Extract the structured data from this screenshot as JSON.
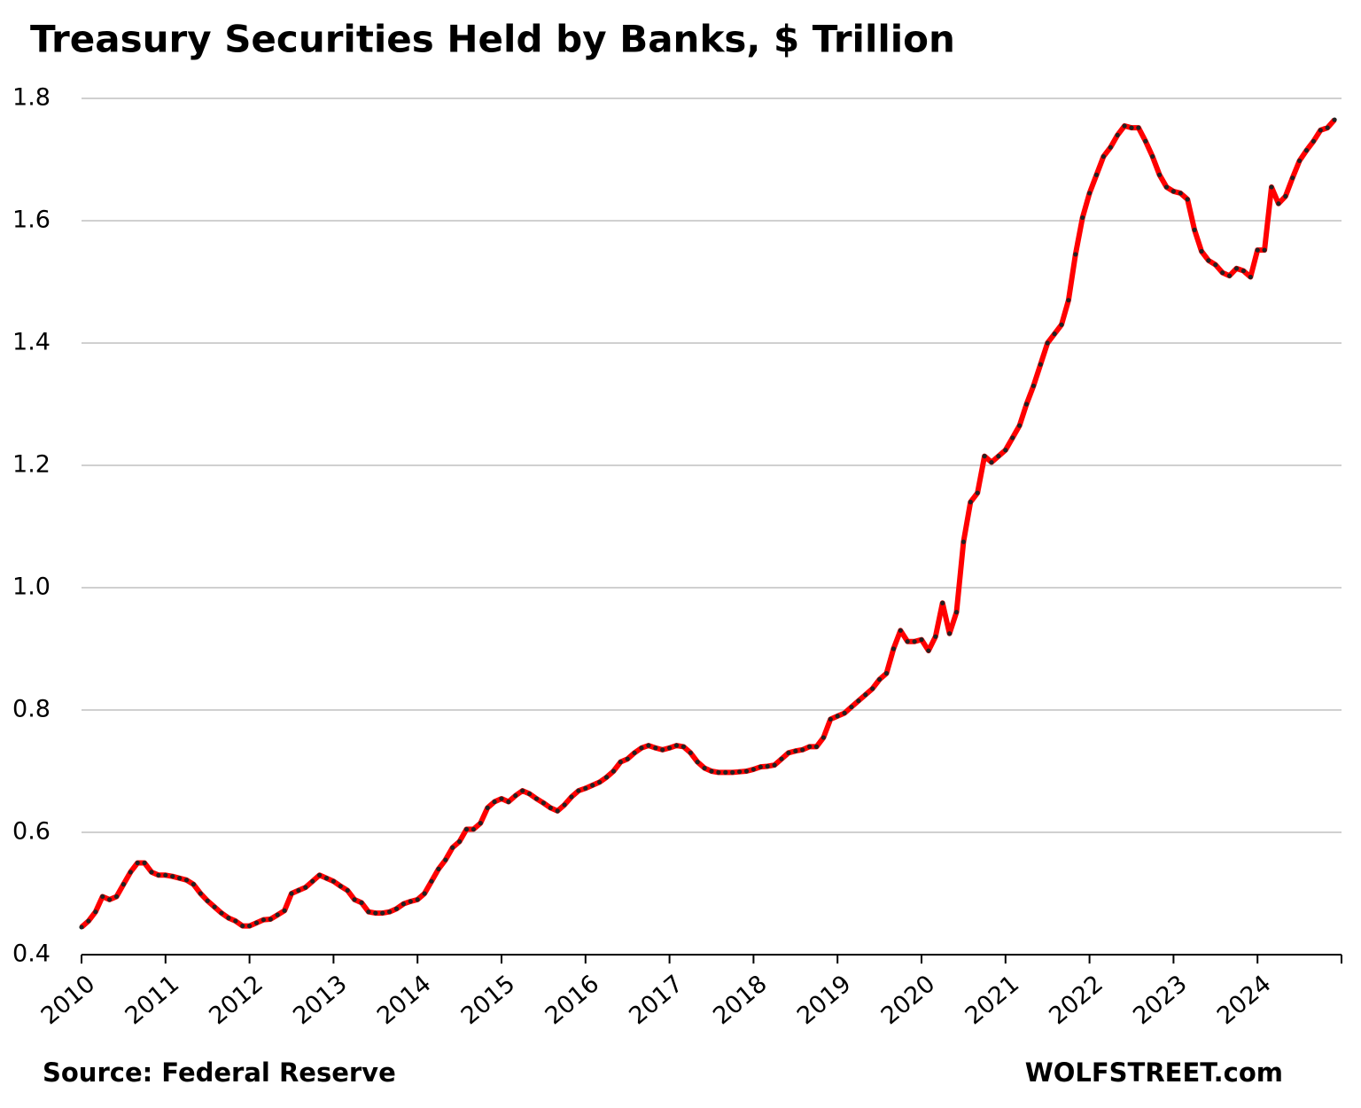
{
  "chart_data": {
    "type": "line",
    "title": "Treasury Securities Held by Banks, $ Trillion",
    "source": "Source: Federal Reserve",
    "watermark": "WOLFSTREET.com",
    "categories": [
      "2010",
      null,
      null,
      null,
      null,
      null,
      null,
      null,
      null,
      null,
      null,
      null,
      "2011",
      null,
      null,
      null,
      null,
      null,
      null,
      null,
      null,
      null,
      null,
      null,
      "2012",
      null,
      null,
      null,
      null,
      null,
      null,
      null,
      null,
      null,
      null,
      null,
      "2013",
      null,
      null,
      null,
      null,
      null,
      null,
      null,
      null,
      null,
      null,
      null,
      "2014",
      null,
      null,
      null,
      null,
      null,
      null,
      null,
      null,
      null,
      null,
      null,
      "2015",
      null,
      null,
      null,
      null,
      null,
      null,
      null,
      null,
      null,
      null,
      null,
      "2016",
      null,
      null,
      null,
      null,
      null,
      null,
      null,
      null,
      null,
      null,
      null,
      "2017",
      null,
      null,
      null,
      null,
      null,
      null,
      null,
      null,
      null,
      null,
      null,
      "2018",
      null,
      null,
      null,
      null,
      null,
      null,
      null,
      null,
      null,
      null,
      null,
      "2019",
      null,
      null,
      null,
      null,
      null,
      null,
      null,
      null,
      null,
      null,
      null,
      "2020",
      null,
      null,
      null,
      null,
      null,
      null,
      null,
      null,
      null,
      null,
      null,
      "2021",
      null,
      null,
      null,
      null,
      null,
      null,
      null,
      null,
      null,
      null,
      null,
      "2022",
      null,
      null,
      null,
      null,
      null,
      null,
      null,
      null,
      null,
      null,
      null,
      "2023",
      null,
      null,
      null,
      null,
      null,
      null,
      null,
      null,
      null,
      null,
      null,
      "2024",
      null,
      null,
      null,
      null,
      null,
      null,
      null,
      null,
      null,
      null,
      null
    ],
    "series": [
      {
        "color": "#ff0000",
        "marker_color": "#222222",
        "values": [
          0.445,
          0.455,
          0.47,
          0.495,
          0.49,
          0.495,
          0.515,
          0.535,
          0.55,
          0.55,
          0.535,
          0.53,
          0.53,
          0.528,
          0.525,
          0.522,
          0.515,
          0.5,
          0.488,
          0.478,
          0.468,
          0.46,
          0.455,
          0.447,
          0.447,
          0.452,
          0.457,
          0.458,
          0.465,
          0.472,
          0.5,
          0.505,
          0.51,
          0.52,
          0.53,
          0.525,
          0.52,
          0.512,
          0.505,
          0.49,
          0.485,
          0.47,
          0.468,
          0.468,
          0.47,
          0.475,
          0.483,
          0.487,
          0.49,
          0.5,
          0.52,
          0.54,
          0.555,
          0.575,
          0.585,
          0.605,
          0.605,
          0.615,
          0.64,
          0.65,
          0.655,
          0.65,
          0.66,
          0.668,
          0.663,
          0.655,
          0.648,
          0.64,
          0.635,
          0.645,
          0.658,
          0.668,
          0.672,
          0.677,
          0.682,
          0.69,
          0.7,
          0.715,
          0.72,
          0.73,
          0.738,
          0.742,
          0.738,
          0.735,
          0.738,
          0.742,
          0.74,
          0.73,
          0.715,
          0.705,
          0.7,
          0.698,
          0.698,
          0.698,
          0.699,
          0.7,
          0.703,
          0.707,
          0.708,
          0.71,
          0.72,
          0.73,
          0.733,
          0.735,
          0.74,
          0.74,
          0.755,
          0.785,
          0.79,
          0.795,
          0.805,
          0.815,
          0.825,
          0.835,
          0.85,
          0.86,
          0.9,
          0.93,
          0.912,
          0.912,
          0.915,
          0.897,
          0.92,
          0.975,
          0.925,
          0.96,
          1.075,
          1.14,
          1.155,
          1.215,
          1.205,
          1.215,
          1.225,
          1.245,
          1.265,
          1.3,
          1.33,
          1.365,
          1.4,
          1.415,
          1.43,
          1.47,
          1.545,
          1.605,
          1.645,
          1.675,
          1.705,
          1.72,
          1.74,
          1.755,
          1.752,
          1.752,
          1.73,
          1.705,
          1.675,
          1.655,
          1.648,
          1.645,
          1.635,
          1.585,
          1.55,
          1.535,
          1.528,
          1.515,
          1.51,
          1.522,
          1.518,
          1.508,
          1.552,
          1.552,
          1.655,
          1.628,
          1.64,
          1.67,
          1.698,
          1.715,
          1.73,
          1.748,
          1.752,
          1.765
        ]
      }
    ],
    "ylim": [
      0.4,
      1.8
    ],
    "yticks": [
      {
        "value": 0.4,
        "label": "0.4"
      },
      {
        "value": 0.6,
        "label": "0.6"
      },
      {
        "value": 0.8,
        "label": "0.8"
      },
      {
        "value": 1.0,
        "label": "1.0"
      },
      {
        "value": 1.2,
        "label": "1.2"
      },
      {
        "value": 1.4,
        "label": "1.4"
      },
      {
        "value": 1.6,
        "label": "1.6"
      },
      {
        "value": 1.8,
        "label": "1.8"
      }
    ],
    "grid": true
  }
}
